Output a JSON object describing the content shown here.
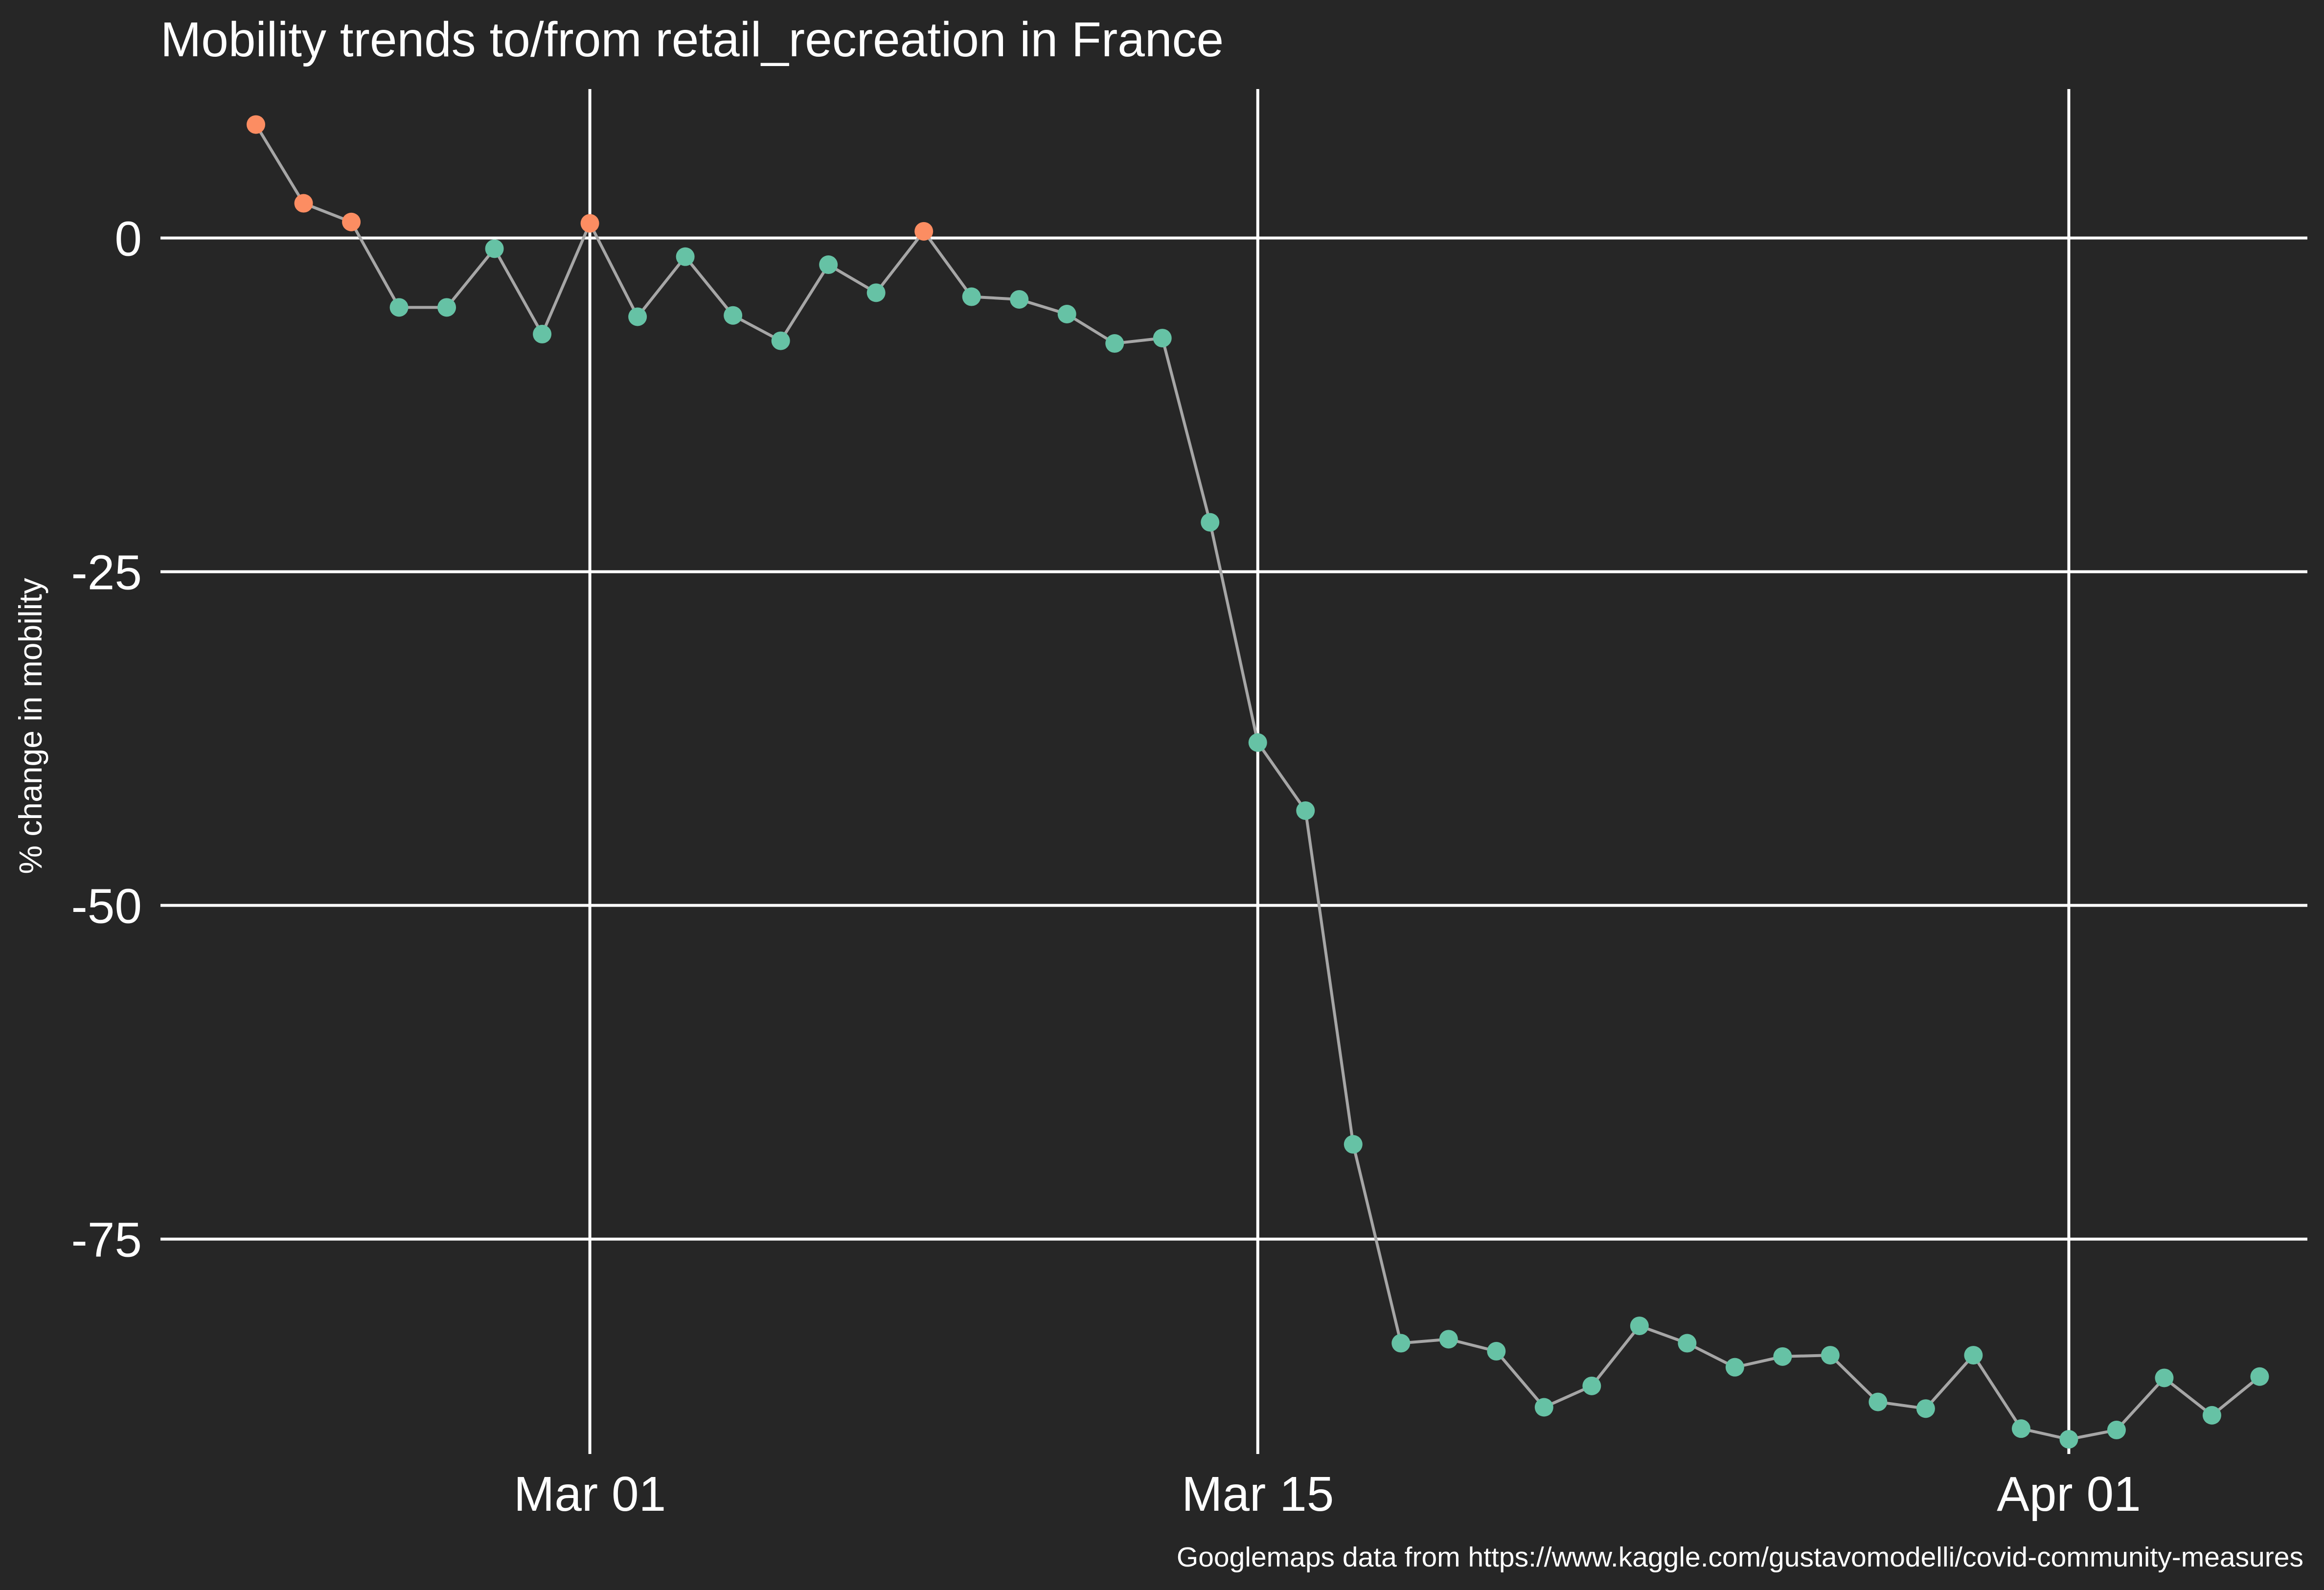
{
  "chart_data": {
    "type": "line",
    "title": "Mobility trends to/from retail_recreation in France",
    "xlabel": "",
    "ylabel": "% change in mobility",
    "caption": "Googlemaps data from https://www.kaggle.com/gustavomodelli/covid-community-measures",
    "grid": true,
    "ylim": [
      -91.1,
      11.6
    ],
    "xlim": [
      "2020-02-21",
      "2020-04-06"
    ],
    "x_ticks": [
      {
        "date": "2020-03-01",
        "label": "Mar 01"
      },
      {
        "date": "2020-03-15",
        "label": "Mar 15"
      },
      {
        "date": "2020-04-01",
        "label": "Apr 01"
      }
    ],
    "y_ticks": [
      {
        "value": 0,
        "label": "0"
      },
      {
        "value": -25,
        "label": "-25"
      },
      {
        "value": -50,
        "label": "-50"
      },
      {
        "value": -75,
        "label": "-75"
      }
    ],
    "colors": {
      "background": "#262626",
      "line": "#a6a6a6",
      "point_above": "#fc8d62",
      "point_below": "#66c2a5",
      "grid": "#ffffff"
    },
    "series": [
      {
        "x": [
          "2020-02-23",
          "2020-02-24",
          "2020-02-25",
          "2020-02-26",
          "2020-02-27",
          "2020-02-28",
          "2020-02-29",
          "2020-03-01",
          "2020-03-02",
          "2020-03-03",
          "2020-03-04",
          "2020-03-05",
          "2020-03-06",
          "2020-03-07",
          "2020-03-08",
          "2020-03-09",
          "2020-03-10",
          "2020-03-11",
          "2020-03-12",
          "2020-03-13",
          "2020-03-14",
          "2020-03-15",
          "2020-03-16",
          "2020-03-17",
          "2020-03-18",
          "2020-03-19",
          "2020-03-20",
          "2020-03-21",
          "2020-03-22",
          "2020-03-23",
          "2020-03-24",
          "2020-03-25",
          "2020-03-26",
          "2020-03-27",
          "2020-03-28",
          "2020-03-29",
          "2020-03-30",
          "2020-03-31",
          "2020-04-01",
          "2020-04-02",
          "2020-04-03",
          "2020-04-04",
          "2020-04-05"
        ],
        "values": [
          8.5,
          2.6,
          1.2,
          -5.2,
          -5.2,
          -0.8,
          -7.2,
          1.1,
          -5.9,
          -1.4,
          -5.8,
          -7.7,
          -2.0,
          -4.1,
          0.5,
          -4.4,
          -4.6,
          -5.7,
          -7.9,
          -7.5,
          -21.3,
          -37.8,
          -42.9,
          -67.9,
          -82.8,
          -82.5,
          -83.4,
          -87.6,
          -86.0,
          -81.5,
          -82.8,
          -84.6,
          -83.8,
          -83.7,
          -87.2,
          -87.7,
          -83.7,
          -89.2,
          -90.0,
          -89.3,
          -85.4,
          -88.2,
          -85.3
        ]
      }
    ]
  }
}
